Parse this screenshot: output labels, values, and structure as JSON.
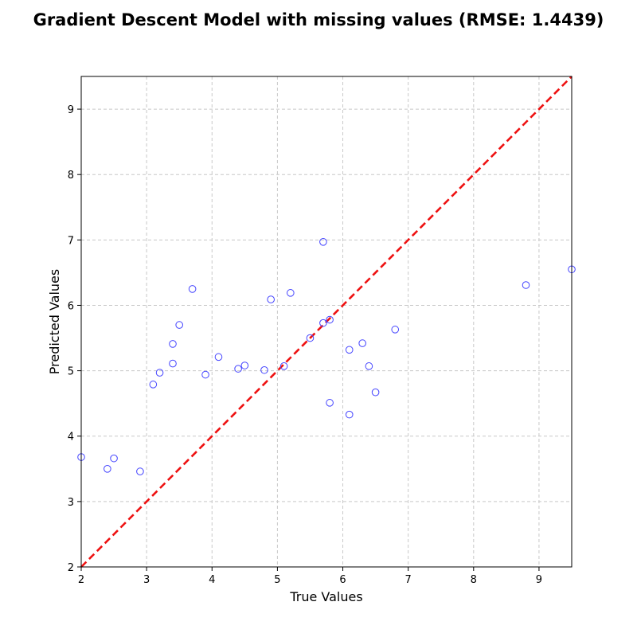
{
  "chart_data": {
    "type": "scatter",
    "title": "Gradient Descent Model with missing values (RMSE: 1.4439)",
    "xlabel": "True Values",
    "ylabel": "Predicted Values",
    "xlim": [
      2,
      9.5
    ],
    "ylim": [
      2,
      9.5
    ],
    "xticks": [
      2,
      3,
      4,
      5,
      6,
      7,
      8,
      9
    ],
    "yticks": [
      2,
      3,
      4,
      5,
      6,
      7,
      8,
      9
    ],
    "grid": true,
    "point_color": "#4444ff",
    "reference_line": {
      "from": [
        2,
        2
      ],
      "to": [
        9.5,
        9.5
      ],
      "color": "#ee1111",
      "style": "dashed"
    },
    "points": [
      {
        "x": 2.0,
        "y": 3.68
      },
      {
        "x": 2.4,
        "y": 3.5
      },
      {
        "x": 2.5,
        "y": 3.66
      },
      {
        "x": 2.9,
        "y": 3.46
      },
      {
        "x": 3.1,
        "y": 4.79
      },
      {
        "x": 3.2,
        "y": 4.97
      },
      {
        "x": 3.4,
        "y": 5.41
      },
      {
        "x": 3.4,
        "y": 5.11
      },
      {
        "x": 3.5,
        "y": 5.7
      },
      {
        "x": 3.7,
        "y": 6.25
      },
      {
        "x": 3.9,
        "y": 4.94
      },
      {
        "x": 4.1,
        "y": 5.21
      },
      {
        "x": 4.4,
        "y": 5.03
      },
      {
        "x": 4.5,
        "y": 5.08
      },
      {
        "x": 4.8,
        "y": 5.01
      },
      {
        "x": 4.9,
        "y": 6.09
      },
      {
        "x": 5.1,
        "y": 5.07
      },
      {
        "x": 5.2,
        "y": 6.19
      },
      {
        "x": 5.5,
        "y": 5.5
      },
      {
        "x": 5.7,
        "y": 6.97
      },
      {
        "x": 5.7,
        "y": 5.73
      },
      {
        "x": 5.8,
        "y": 5.78
      },
      {
        "x": 5.8,
        "y": 4.51
      },
      {
        "x": 6.1,
        "y": 5.32
      },
      {
        "x": 6.1,
        "y": 4.33
      },
      {
        "x": 6.3,
        "y": 5.42
      },
      {
        "x": 6.4,
        "y": 5.07
      },
      {
        "x": 6.5,
        "y": 4.67
      },
      {
        "x": 6.8,
        "y": 5.63
      },
      {
        "x": 8.8,
        "y": 6.31
      },
      {
        "x": 9.5,
        "y": 6.55
      }
    ]
  }
}
